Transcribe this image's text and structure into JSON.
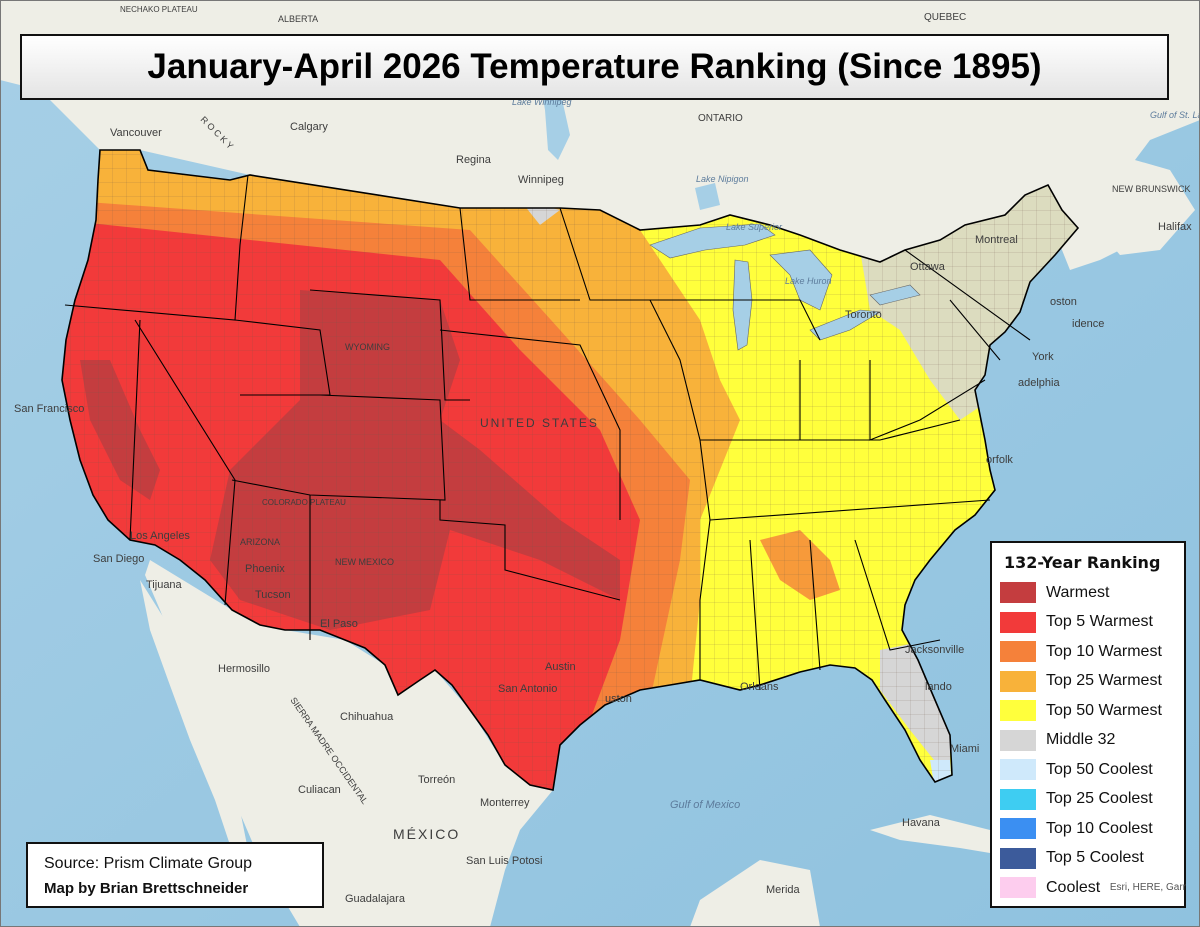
{
  "title": "January-April 2026 Temperature Ranking (Since 1895)",
  "legend": {
    "title": "132-Year Ranking",
    "items": [
      {
        "label": "Warmest",
        "color": "#c43d3f"
      },
      {
        "label": "Top 5 Warmest",
        "color": "#f23a3a"
      },
      {
        "label": "Top 10 Warmest",
        "color": "#f5813a"
      },
      {
        "label": "Top 25 Warmest",
        "color": "#f8b23a"
      },
      {
        "label": "Top 50 Warmest",
        "color": "#ffff3c"
      },
      {
        "label": "Middle 32",
        "color": "#d6d6d6"
      },
      {
        "label": "Top 50 Coolest",
        "color": "#cfe9fb"
      },
      {
        "label": "Top 25 Coolest",
        "color": "#3ecdf2"
      },
      {
        "label": "Top 10 Coolest",
        "color": "#3b8ff2"
      },
      {
        "label": "Top 5 Coolest",
        "color": "#3c5b9b"
      },
      {
        "label": "Coolest",
        "color": "#fdcdee"
      }
    ]
  },
  "source": "Source: Prism Climate Group",
  "credit": "Map by Brian Brettschneider",
  "attribution": "Esri, HERE, Garr",
  "place_labels": {
    "calgary": "Calgary",
    "regina": "Regina",
    "winnipeg": "Winnipeg",
    "ontario": "ONTARIO",
    "vancouver": "Vancouver",
    "montreal": "Montreal",
    "ottawa": "Ottawa",
    "quebec": "QUEBEC",
    "halifax": "Halifax",
    "toronto": "Toronto",
    "boston": "oston",
    "providence": "idence",
    "new_york": "York",
    "philadelphia": "adelphia",
    "norfolk": "orfolk",
    "jacksonville": "Jacksonville",
    "orlando": "lando",
    "miami": "Miami",
    "havana": "Havana",
    "new_orleans": "Orleans",
    "houston": "uston",
    "austin": "Austin",
    "san_antonio": "San Antonio",
    "el_paso": "El Paso",
    "tucson": "Tucson",
    "phoenix": "Phoenix",
    "los_angeles": "Los Angeles",
    "san_diego": "San Diego",
    "tijuana": "Tijuana",
    "san_francisco": "San Francisco",
    "hermosillo": "Hermosillo",
    "chihuahua": "Chihuahua",
    "culiacan": "Culiacan",
    "torreon": "Torreón",
    "monterrey": "Monterrey",
    "mexico": "MÉXICO",
    "san_luis_potosi": "San Luis Potosi",
    "guadalajara": "Guadalajara",
    "merida": "Merida",
    "united_states": "UNITED STATES",
    "wyoming": "WYOMING",
    "arizona": "ARIZONA",
    "new_mexico": "NEW MEXICO",
    "gulf_of_mexico": "Gulf of Mexico",
    "lake_winnipeg": "Lake Winnipeg",
    "lake_superior": "Lake Superior",
    "lake_nipigon": "Lake Nipigon",
    "lake_huron": "Lake Huron",
    "gulf_st_lawrence": "Gulf of St. Lawrence",
    "new_brunswick": "NEW BRUNSWICK",
    "alberta": "ALBERTA",
    "nechako": "NECHAKO PLATEAU",
    "sierra_madre": "SIERRA MADRE OCCIDENTAL",
    "colorado_plateau": "COLORADO PLATEAU",
    "rocky": "R O C K Y"
  }
}
